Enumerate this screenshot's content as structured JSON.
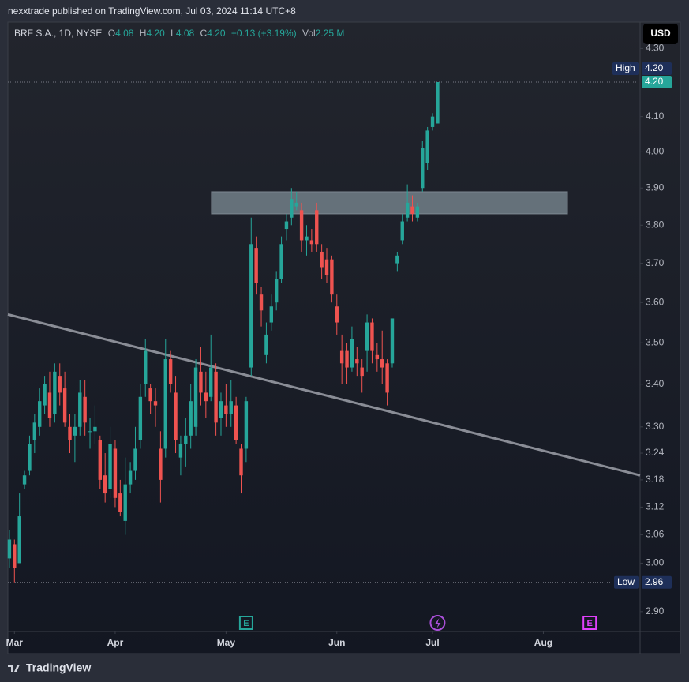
{
  "header": {
    "text": "nexxtrade published on TradingView.com, Jul 03, 2024 11:14 UTC+8"
  },
  "footer": {
    "brand": "TradingView"
  },
  "chart_data": {
    "type": "candlestick",
    "symbol": "BRF S.A., 1D, NYSE",
    "legend": {
      "o_label": "O",
      "open": "4.08",
      "h_label": "H",
      "high": "4.20",
      "l_label": "L",
      "low": "4.08",
      "c_label": "C",
      "close": "4.20",
      "change": "+0.13 (+3.19%)",
      "vol_label": "Vol",
      "volume": "2.25 M"
    },
    "currency": "USD",
    "up_color": "#26a69a",
    "down_color": "#ef5350",
    "open": [
      3.01,
      3.04,
      3.0,
      3.17,
      3.2,
      3.27,
      3.3,
      3.35,
      3.38,
      3.33,
      3.42,
      3.39,
      3.3,
      3.28,
      3.3,
      3.37,
      3.29,
      3.29,
      3.27,
      3.19,
      3.16,
      3.25,
      3.15,
      3.09,
      3.17,
      3.2,
      3.27,
      3.4,
      3.39,
      3.36,
      3.25,
      3.25,
      3.46,
      3.38,
      3.23,
      3.26,
      3.28,
      3.3,
      3.43,
      3.38,
      3.37,
      3.43,
      3.32,
      3.35,
      3.33,
      3.35,
      3.25,
      3.25,
      3.44,
      3.74,
      3.62,
      3.47,
      3.55,
      3.6,
      3.66,
      3.79,
      3.82,
      3.85,
      3.84,
      3.76,
      3.76,
      3.84,
      3.73,
      3.71,
      3.71,
      3.59,
      3.48,
      3.48,
      3.44,
      3.46,
      3.44,
      3.48,
      3.55,
      3.47,
      3.46,
      3.45,
      3.45,
      3.7,
      3.76,
      3.82,
      3.85,
      3.82,
      3.9,
      3.97,
      4.07,
      4.08
    ],
    "high": [
      3.07,
      3.05,
      3.15,
      3.2,
      3.28,
      3.33,
      3.39,
      3.42,
      3.43,
      3.45,
      3.45,
      3.43,
      3.33,
      3.33,
      3.41,
      3.41,
      3.32,
      3.35,
      3.28,
      3.24,
      3.3,
      3.27,
      3.18,
      3.23,
      3.22,
      3.3,
      3.4,
      3.51,
      3.4,
      3.39,
      3.29,
      3.51,
      3.48,
      3.42,
      3.28,
      3.32,
      3.4,
      3.46,
      3.49,
      3.43,
      3.52,
      3.45,
      3.38,
      3.4,
      3.41,
      3.37,
      3.26,
      3.37,
      3.82,
      3.77,
      3.64,
      3.55,
      3.62,
      3.68,
      3.77,
      3.83,
      3.9,
      3.89,
      3.86,
      3.8,
      3.79,
      3.86,
      3.75,
      3.74,
      3.72,
      3.62,
      3.52,
      3.5,
      3.54,
      3.49,
      3.46,
      3.57,
      3.56,
      3.5,
      3.53,
      3.46,
      3.56,
      3.73,
      3.83,
      3.91,
      3.88,
      3.86,
      4.03,
      4.07,
      4.11,
      4.2
    ],
    "low": [
      2.99,
      2.96,
      3.0,
      3.16,
      3.19,
      3.24,
      3.28,
      3.33,
      3.3,
      3.31,
      3.35,
      3.3,
      3.24,
      3.22,
      3.28,
      3.28,
      3.25,
      3.26,
      3.16,
      3.13,
      3.14,
      3.12,
      3.1,
      3.06,
      3.15,
      3.18,
      3.25,
      3.37,
      3.33,
      3.3,
      3.13,
      3.23,
      3.38,
      3.24,
      3.19,
      3.21,
      3.25,
      3.28,
      3.35,
      3.32,
      3.36,
      3.28,
      3.28,
      3.3,
      3.3,
      3.26,
      3.15,
      3.22,
      3.42,
      3.62,
      3.54,
      3.45,
      3.53,
      3.58,
      3.65,
      3.76,
      3.8,
      3.84,
      3.73,
      3.72,
      3.73,
      3.73,
      3.66,
      3.65,
      3.6,
      3.52,
      3.4,
      3.4,
      3.43,
      3.42,
      3.38,
      3.43,
      3.45,
      3.43,
      3.4,
      3.35,
      3.44,
      3.68,
      3.75,
      3.81,
      3.81,
      3.81,
      3.89,
      3.95,
      4.06,
      4.08
    ],
    "close": [
      3.05,
      2.99,
      3.1,
      3.19,
      3.26,
      3.31,
      3.36,
      3.4,
      3.32,
      3.43,
      3.38,
      3.31,
      3.27,
      3.3,
      3.38,
      3.31,
      3.29,
      3.3,
      3.18,
      3.15,
      3.26,
      3.14,
      3.11,
      3.17,
      3.2,
      3.25,
      3.37,
      3.48,
      3.36,
      3.35,
      3.18,
      3.46,
      3.4,
      3.27,
      3.26,
      3.28,
      3.36,
      3.44,
      3.38,
      3.36,
      3.44,
      3.31,
      3.36,
      3.33,
      3.36,
      3.27,
      3.19,
      3.36,
      3.75,
      3.65,
      3.58,
      3.52,
      3.59,
      3.66,
      3.75,
      3.81,
      3.87,
      3.86,
      3.76,
      3.77,
      3.75,
      3.75,
      3.69,
      3.67,
      3.62,
      3.55,
      3.45,
      3.44,
      3.51,
      3.45,
      3.42,
      3.55,
      3.48,
      3.46,
      3.44,
      3.38,
      3.56,
      3.72,
      3.81,
      3.86,
      3.83,
      3.85,
      4.01,
      4.06,
      4.1,
      4.2
    ],
    "xlim": [
      -0.3,
      125.2
    ],
    "xticks": [
      {
        "value": 1,
        "label": "Mar"
      },
      {
        "value": 21,
        "label": "Apr"
      },
      {
        "value": 43,
        "label": "May"
      },
      {
        "value": 65,
        "label": "Jun"
      },
      {
        "value": 84,
        "label": "Jul"
      },
      {
        "value": 106,
        "label": "Aug"
      }
    ],
    "ylim": [
      2.86,
      4.38
    ],
    "log_scale": true,
    "grid": false,
    "yticks": [
      {
        "value": 4.3,
        "label": "4.30"
      },
      {
        "value": 4.1,
        "label": "4.10"
      },
      {
        "value": 4.0,
        "label": "4.00"
      },
      {
        "value": 3.9,
        "label": "3.90"
      },
      {
        "value": 3.8,
        "label": "3.80"
      },
      {
        "value": 3.7,
        "label": "3.70"
      },
      {
        "value": 3.6,
        "label": "3.60"
      },
      {
        "value": 3.5,
        "label": "3.50"
      },
      {
        "value": 3.4,
        "label": "3.40"
      },
      {
        "value": 3.3,
        "label": "3.30"
      },
      {
        "value": 3.24,
        "label": "3.24"
      },
      {
        "value": 3.18,
        "label": "3.18"
      },
      {
        "value": 3.12,
        "label": "3.12"
      },
      {
        "value": 3.06,
        "label": "3.06"
      },
      {
        "value": 3.0,
        "label": "3.00"
      },
      {
        "value": 2.9,
        "label": "2.90"
      }
    ],
    "high_marker": {
      "label": "High",
      "value": 4.2,
      "value_label": "4.20"
    },
    "low_marker": {
      "label": "Low",
      "value": 2.96,
      "value_label": "2.96"
    },
    "last_price": {
      "value": 4.2,
      "label": "4.20"
    },
    "trendline": {
      "x": [
        -0.3,
        125.2
      ],
      "y": [
        3.57,
        3.19
      ]
    },
    "zone": {
      "x": [
        40.1,
        110.8
      ],
      "y": [
        3.83,
        3.89
      ]
    },
    "events": [
      {
        "x": 47,
        "label": "E",
        "color": "#26a69a"
      },
      {
        "x": 85,
        "label": null,
        "color": "#a94fd8"
      },
      {
        "x": 115.2,
        "label": "E",
        "color": "#e040fb"
      }
    ]
  }
}
